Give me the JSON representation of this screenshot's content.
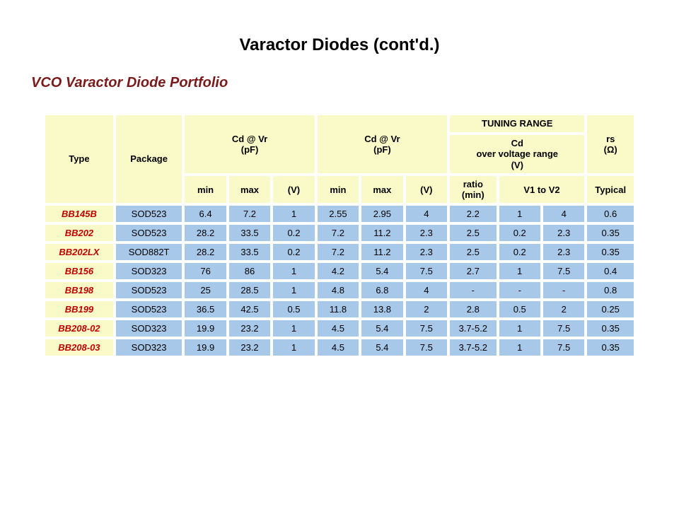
{
  "title": "Varactor Diodes (cont'd.)",
  "subtitle": "VCO Varactor Diode Portfolio",
  "colors": {
    "page_bg": "#ffffff",
    "header_bg": "#fafac8",
    "data_bg": "#a7c8e8",
    "type_text": "#c00000",
    "subtitle_text": "#7a1a1a"
  },
  "typography": {
    "title_fontsize": 24,
    "subtitle_fontsize": 20,
    "header_fontsize": 13,
    "data_fontsize": 14
  },
  "table": {
    "headers": {
      "type": "Type",
      "package": "Package",
      "cd_vr": "Cd @ Vr",
      "cd_vr_unit": "(pF)",
      "tuning_range": "TUNING RANGE",
      "cd_over": "Cd",
      "cd_over_sub": "over voltage range",
      "cd_over_unit": "(V)",
      "rs": "rs",
      "rs_unit": "(Ω)",
      "min": "min",
      "max": "max",
      "V": "(V)",
      "ratio_min": "ratio (min)",
      "v1_to_v2": "V1 to V2",
      "typical": "Typical"
    },
    "rows": [
      {
        "type": "BB145B",
        "package": "SOD523",
        "cd1_min": "6.4",
        "cd1_max": "7.2",
        "cd1_V": "1",
        "cd2_min": "2.55",
        "cd2_max": "2.95",
        "cd2_V": "4",
        "ratio": "2.2",
        "v1": "1",
        "v2": "4",
        "rs": "0.6"
      },
      {
        "type": "BB202",
        "package": "SOD523",
        "cd1_min": "28.2",
        "cd1_max": "33.5",
        "cd1_V": "0.2",
        "cd2_min": "7.2",
        "cd2_max": "11.2",
        "cd2_V": "2.3",
        "ratio": "2.5",
        "v1": "0.2",
        "v2": "2.3",
        "rs": "0.35"
      },
      {
        "type": "BB202LX",
        "package": "SOD882T",
        "cd1_min": "28.2",
        "cd1_max": "33.5",
        "cd1_V": "0.2",
        "cd2_min": "7.2",
        "cd2_max": "11.2",
        "cd2_V": "2.3",
        "ratio": "2.5",
        "v1": "0.2",
        "v2": "2.3",
        "rs": "0.35"
      },
      {
        "type": "BB156",
        "package": "SOD323",
        "cd1_min": "76",
        "cd1_max": "86",
        "cd1_V": "1",
        "cd2_min": "4.2",
        "cd2_max": "5.4",
        "cd2_V": "7.5",
        "ratio": "2.7",
        "v1": "1",
        "v2": "7.5",
        "rs": "0.4"
      },
      {
        "type": "BB198",
        "package": "SOD523",
        "cd1_min": "25",
        "cd1_max": "28.5",
        "cd1_V": "1",
        "cd2_min": "4.8",
        "cd2_max": "6.8",
        "cd2_V": "4",
        "ratio": "-",
        "v1": "-",
        "v2": "-",
        "rs": "0.8"
      },
      {
        "type": "BB199",
        "package": "SOD523",
        "cd1_min": "36.5",
        "cd1_max": "42.5",
        "cd1_V": "0.5",
        "cd2_min": "11.8",
        "cd2_max": "13.8",
        "cd2_V": "2",
        "ratio": "2.8",
        "v1": "0.5",
        "v2": "2",
        "rs": "0.25"
      },
      {
        "type": "BB208-02",
        "package": "SOD323",
        "cd1_min": "19.9",
        "cd1_max": "23.2",
        "cd1_V": "1",
        "cd2_min": "4.5",
        "cd2_max": "5.4",
        "cd2_V": "7.5",
        "ratio": "3.7-5.2",
        "v1": "1",
        "v2": "7.5",
        "rs": "0.35"
      },
      {
        "type": "BB208-03",
        "package": "SOD323",
        "cd1_min": "19.9",
        "cd1_max": "23.2",
        "cd1_V": "1",
        "cd2_min": "4.5",
        "cd2_max": "5.4",
        "cd2_V": "7.5",
        "ratio": "3.7-5.2",
        "v1": "1",
        "v2": "7.5",
        "rs": "0.35"
      }
    ]
  }
}
